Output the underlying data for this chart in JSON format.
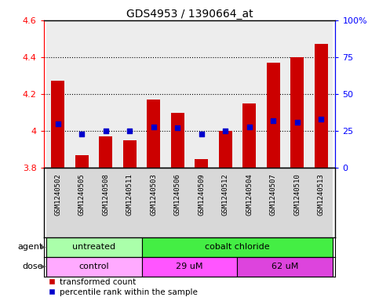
{
  "title": "GDS4953 / 1390664_at",
  "samples": [
    "GSM1240502",
    "GSM1240505",
    "GSM1240508",
    "GSM1240511",
    "GSM1240503",
    "GSM1240506",
    "GSM1240509",
    "GSM1240512",
    "GSM1240504",
    "GSM1240507",
    "GSM1240510",
    "GSM1240513"
  ],
  "transformed_count": [
    4.27,
    3.87,
    3.97,
    3.95,
    4.17,
    4.1,
    3.85,
    4.0,
    4.15,
    4.37,
    4.4,
    4.47
  ],
  "percentile_rank": [
    30,
    23,
    25,
    25,
    28,
    27,
    23,
    25,
    28,
    32,
    31,
    33
  ],
  "baseline": 3.8,
  "ylim": [
    3.8,
    4.6
  ],
  "yticks_left": [
    3.8,
    4.0,
    4.2,
    4.4,
    4.6
  ],
  "ytick_labels_left": [
    "3.8",
    "4",
    "4.2",
    "4.4",
    "4.6"
  ],
  "yticks_right": [
    0,
    25,
    50,
    75,
    100
  ],
  "ytick_labels_right": [
    "0",
    "25",
    "50",
    "75",
    "100%"
  ],
  "bar_color": "#cc0000",
  "dot_color": "#0000cc",
  "agent_groups": [
    {
      "label": "untreated",
      "start": 0,
      "end": 4,
      "color": "#aaffaa"
    },
    {
      "label": "cobalt chloride",
      "start": 4,
      "end": 12,
      "color": "#44ee44"
    }
  ],
  "dose_groups": [
    {
      "label": "control",
      "start": 0,
      "end": 4,
      "color": "#ffaaff"
    },
    {
      "label": "29 uM",
      "start": 4,
      "end": 8,
      "color": "#ff55ff"
    },
    {
      "label": "62 uM",
      "start": 8,
      "end": 12,
      "color": "#dd44dd"
    }
  ],
  "legend_items": [
    {
      "label": "transformed count",
      "color": "#cc0000"
    },
    {
      "label": "percentile rank within the sample",
      "color": "#0000cc"
    }
  ],
  "agent_label": "agent",
  "dose_label": "dose",
  "bar_width": 0.55,
  "tick_fontsize": 8,
  "label_fontsize": 8,
  "title_fontsize": 10,
  "sample_fontsize": 6.5,
  "grid_yticks": [
    4.0,
    4.2,
    4.4
  ]
}
